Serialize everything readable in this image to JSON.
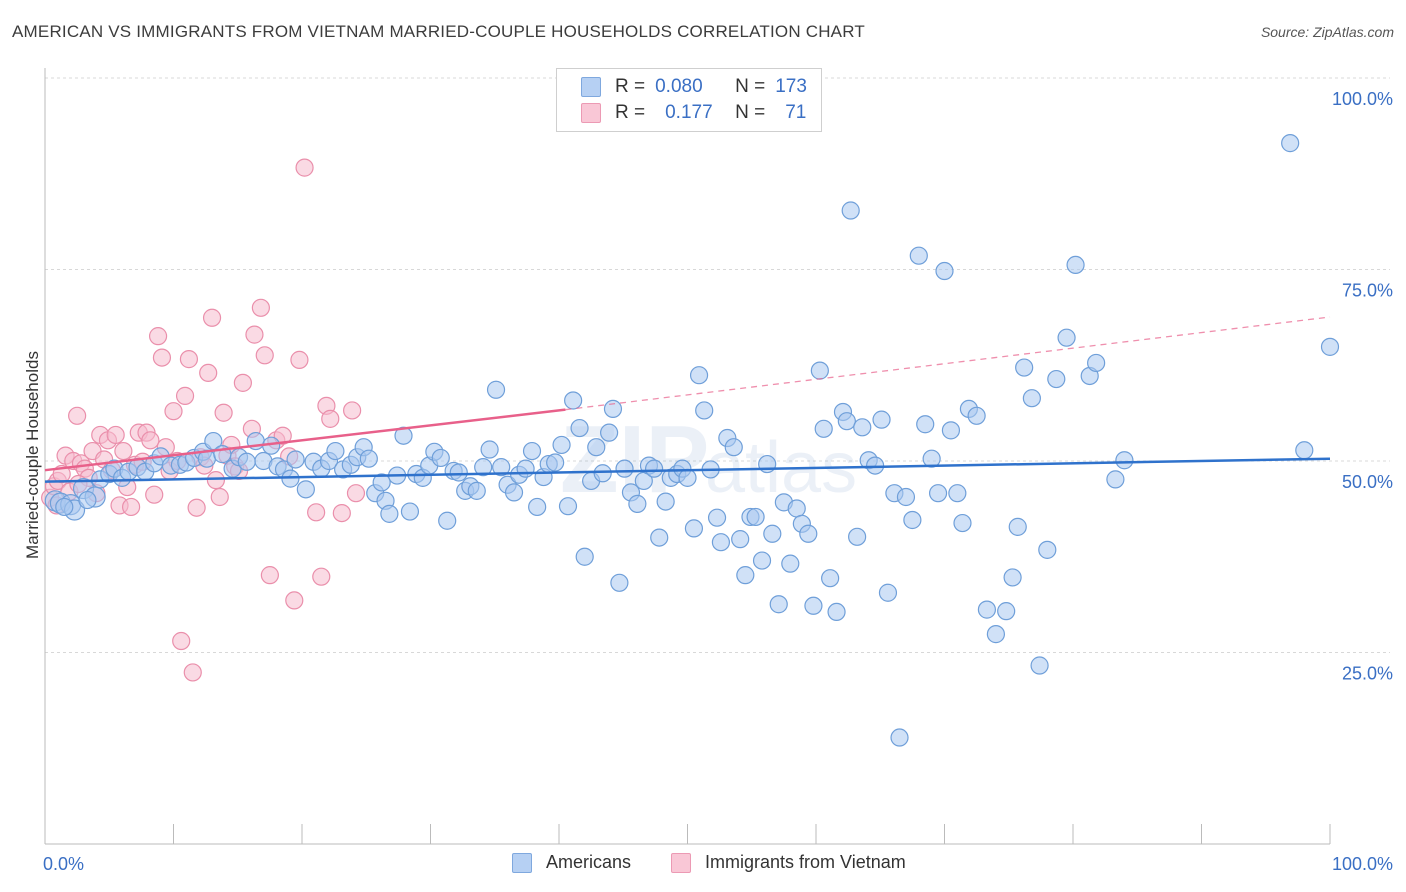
{
  "title": "AMERICAN VS IMMIGRANTS FROM VIETNAM MARRIED-COUPLE HOUSEHOLDS CORRELATION CHART",
  "source": "Source: ZipAtlas.com",
  "legend": {
    "row1": {
      "r_label": "R =",
      "r_value": "0.080",
      "n_label": "N =",
      "n_value": "173"
    },
    "row2": {
      "r_label": "R =",
      "r_value": "0.177",
      "n_label": "N =",
      "n_value": "71"
    }
  },
  "bottom_legend": {
    "americans": "Americans",
    "vietnam": "Immigrants from Vietnam"
  },
  "colors": {
    "blue_fill": "#a9c8f0",
    "blue_stroke": "#6f9fd9",
    "blue_line": "#2f72cc",
    "pink_fill": "#f6bccd",
    "pink_stroke": "#ea8fab",
    "pink_line": "#e8608a",
    "axis_text": "#3a6fc4",
    "grid": "#d8d8d8"
  },
  "chart_data": {
    "type": "scatter",
    "title": "AMERICAN VS IMMIGRANTS FROM VIETNAM MARRIED-COUPLE HOUSEHOLDS CORRELATION CHART",
    "xlabel": "",
    "ylabel": "Married-couple Households",
    "xlim": [
      0,
      100
    ],
    "ylim": [
      0,
      100
    ],
    "x_tick_labels": [
      "0.0%",
      "100.0%"
    ],
    "y_tick_labels": [
      "25.0%",
      "50.0%",
      "75.0%",
      "100.0%"
    ],
    "y_ticks": [
      25,
      50,
      75,
      100
    ],
    "grid": true,
    "legend_position": "top-center",
    "series": [
      {
        "name": "Americans",
        "R": 0.08,
        "N": 173,
        "trend": {
          "x": [
            0,
            100
          ],
          "y": [
            47.3,
            50.3
          ],
          "style": "solid"
        },
        "points": [
          [
            0.8,
            44.8
          ],
          [
            1.2,
            44.5
          ],
          [
            2.0,
            44.3
          ],
          [
            2.3,
            43.6
          ],
          [
            3.0,
            46.4
          ],
          [
            3.9,
            45.3
          ],
          [
            4.3,
            47.6
          ],
          [
            5.0,
            48.3
          ],
          [
            5.4,
            49.0
          ],
          [
            6.0,
            47.8
          ],
          [
            6.5,
            48.6
          ],
          [
            7.2,
            49.2
          ],
          [
            7.8,
            48.6
          ],
          [
            8.5,
            49.7
          ],
          [
            9.0,
            50.6
          ],
          [
            9.8,
            49.4
          ],
          [
            10.5,
            49.5
          ],
          [
            11.0,
            49.8
          ],
          [
            11.6,
            50.4
          ],
          [
            12.3,
            51.2
          ],
          [
            12.6,
            50.3
          ],
          [
            13.1,
            52.6
          ],
          [
            13.8,
            50.9
          ],
          [
            14.6,
            49.0
          ],
          [
            15.1,
            50.5
          ],
          [
            15.7,
            49.9
          ],
          [
            16.4,
            52.6
          ],
          [
            17.0,
            50.0
          ],
          [
            17.6,
            52.0
          ],
          [
            18.1,
            49.3
          ],
          [
            18.6,
            48.9
          ],
          [
            19.1,
            47.7
          ],
          [
            19.5,
            50.2
          ],
          [
            20.3,
            46.3
          ],
          [
            20.9,
            49.9
          ],
          [
            21.5,
            49.0
          ],
          [
            22.1,
            50.0
          ],
          [
            22.6,
            51.3
          ],
          [
            23.2,
            48.9
          ],
          [
            23.8,
            49.5
          ],
          [
            24.3,
            50.5
          ],
          [
            24.8,
            51.8
          ],
          [
            25.2,
            50.3
          ],
          [
            25.7,
            45.8
          ],
          [
            26.2,
            47.2
          ],
          [
            26.5,
            44.8
          ],
          [
            26.8,
            43.1
          ],
          [
            27.4,
            48.1
          ],
          [
            27.9,
            53.3
          ],
          [
            28.4,
            43.4
          ],
          [
            28.9,
            48.3
          ],
          [
            29.4,
            47.8
          ],
          [
            29.9,
            49.4
          ],
          [
            30.3,
            51.2
          ],
          [
            30.8,
            50.4
          ],
          [
            31.3,
            42.2
          ],
          [
            31.8,
            48.7
          ],
          [
            32.2,
            48.5
          ],
          [
            32.7,
            46.1
          ],
          [
            33.1,
            46.7
          ],
          [
            33.6,
            46.1
          ],
          [
            34.1,
            49.2
          ],
          [
            34.6,
            51.5
          ],
          [
            35.1,
            59.3
          ],
          [
            35.5,
            49.2
          ],
          [
            36.0,
            46.9
          ],
          [
            36.5,
            45.9
          ],
          [
            36.9,
            48.2
          ],
          [
            37.4,
            49.0
          ],
          [
            37.9,
            51.3
          ],
          [
            38.3,
            44.0
          ],
          [
            38.8,
            47.9
          ],
          [
            39.2,
            49.6
          ],
          [
            39.7,
            49.8
          ],
          [
            40.2,
            52.1
          ],
          [
            40.7,
            44.1
          ],
          [
            41.1,
            57.9
          ],
          [
            41.6,
            54.3
          ],
          [
            42.0,
            37.5
          ],
          [
            42.5,
            47.4
          ],
          [
            42.9,
            51.8
          ],
          [
            43.4,
            48.4
          ],
          [
            43.9,
            53.7
          ],
          [
            44.2,
            56.8
          ],
          [
            44.7,
            34.1
          ],
          [
            45.1,
            49.0
          ],
          [
            45.6,
            45.9
          ],
          [
            46.1,
            44.4
          ],
          [
            46.6,
            47.4
          ],
          [
            47.0,
            49.4
          ],
          [
            47.4,
            49.0
          ],
          [
            47.8,
            40.0
          ],
          [
            48.3,
            44.7
          ],
          [
            48.7,
            47.8
          ],
          [
            49.2,
            48.3
          ],
          [
            49.6,
            49.0
          ],
          [
            50.0,
            47.8
          ],
          [
            50.5,
            41.2
          ],
          [
            50.9,
            61.2
          ],
          [
            51.3,
            56.6
          ],
          [
            51.8,
            48.9
          ],
          [
            52.3,
            42.6
          ],
          [
            52.6,
            39.4
          ],
          [
            53.1,
            53.0
          ],
          [
            53.6,
            51.8
          ],
          [
            54.1,
            39.8
          ],
          [
            54.5,
            35.1
          ],
          [
            54.9,
            42.7
          ],
          [
            55.3,
            42.7
          ],
          [
            55.8,
            37.0
          ],
          [
            56.2,
            49.6
          ],
          [
            56.6,
            40.5
          ],
          [
            57.1,
            31.3
          ],
          [
            57.5,
            44.6
          ],
          [
            58.0,
            36.6
          ],
          [
            58.5,
            43.8
          ],
          [
            58.9,
            41.8
          ],
          [
            59.4,
            40.5
          ],
          [
            59.8,
            31.1
          ],
          [
            60.3,
            61.8
          ],
          [
            60.6,
            54.2
          ],
          [
            61.1,
            34.7
          ],
          [
            61.6,
            30.3
          ],
          [
            62.1,
            56.4
          ],
          [
            62.4,
            55.2
          ],
          [
            62.7,
            82.7
          ],
          [
            63.2,
            40.1
          ],
          [
            63.6,
            54.4
          ],
          [
            64.1,
            50.1
          ],
          [
            64.6,
            49.4
          ],
          [
            65.1,
            55.4
          ],
          [
            65.6,
            32.8
          ],
          [
            66.1,
            45.8
          ],
          [
            66.5,
            13.9
          ],
          [
            67.0,
            45.3
          ],
          [
            67.5,
            42.3
          ],
          [
            68.0,
            76.8
          ],
          [
            68.5,
            54.8
          ],
          [
            69.0,
            50.3
          ],
          [
            69.5,
            45.8
          ],
          [
            70.0,
            74.8
          ],
          [
            70.5,
            54.0
          ],
          [
            71.0,
            45.8
          ],
          [
            71.4,
            41.9
          ],
          [
            71.9,
            56.8
          ],
          [
            72.5,
            55.9
          ],
          [
            73.3,
            30.6
          ],
          [
            74.0,
            27.4
          ],
          [
            74.8,
            30.4
          ],
          [
            75.3,
            34.8
          ],
          [
            75.7,
            41.4
          ],
          [
            76.2,
            62.2
          ],
          [
            76.8,
            58.2
          ],
          [
            77.4,
            23.3
          ],
          [
            78.0,
            38.4
          ],
          [
            78.7,
            60.7
          ],
          [
            79.5,
            66.1
          ],
          [
            80.2,
            75.6
          ],
          [
            81.3,
            61.1
          ],
          [
            81.8,
            62.8
          ],
          [
            83.3,
            47.6
          ],
          [
            84.0,
            50.1
          ],
          [
            96.9,
            91.5
          ],
          [
            98.0,
            51.4
          ],
          [
            100.0,
            64.9
          ],
          [
            1.5,
            44.0
          ],
          [
            3.3,
            44.9
          ]
        ]
      },
      {
        "name": "Immigrants from Vietnam",
        "R": 0.177,
        "N": 71,
        "trend": {
          "x": [
            0,
            40.5
          ],
          "y": [
            48.8,
            56.7
          ],
          "extended": {
            "x": [
              40.5,
              100
            ],
            "y": [
              56.7,
              68.8
            ]
          },
          "style": "solid+dashed"
        },
        "points": [
          [
            0.4,
            45.2
          ],
          [
            0.7,
            46.7
          ],
          [
            1.0,
            47.4
          ],
          [
            1.3,
            48.3
          ],
          [
            1.6,
            50.7
          ],
          [
            1.9,
            46.0
          ],
          [
            2.2,
            50.0
          ],
          [
            2.5,
            55.9
          ],
          [
            2.8,
            49.7
          ],
          [
            3.1,
            49.0
          ],
          [
            3.4,
            47.8
          ],
          [
            3.7,
            51.3
          ],
          [
            4.0,
            45.8
          ],
          [
            4.3,
            53.4
          ],
          [
            4.6,
            50.2
          ],
          [
            4.9,
            52.7
          ],
          [
            5.2,
            48.8
          ],
          [
            5.5,
            53.4
          ],
          [
            5.8,
            44.2
          ],
          [
            6.1,
            51.3
          ],
          [
            6.4,
            46.6
          ],
          [
            6.7,
            44.0
          ],
          [
            7.0,
            49.5
          ],
          [
            7.3,
            53.7
          ],
          [
            7.6,
            49.9
          ],
          [
            7.9,
            53.7
          ],
          [
            8.2,
            52.7
          ],
          [
            8.5,
            45.6
          ],
          [
            8.8,
            66.3
          ],
          [
            9.1,
            63.5
          ],
          [
            9.4,
            51.8
          ],
          [
            9.7,
            48.7
          ],
          [
            10.0,
            56.5
          ],
          [
            10.3,
            50.0
          ],
          [
            10.6,
            26.5
          ],
          [
            10.9,
            58.5
          ],
          [
            11.2,
            63.3
          ],
          [
            11.5,
            22.4
          ],
          [
            11.8,
            43.9
          ],
          [
            12.1,
            50.5
          ],
          [
            12.4,
            49.4
          ],
          [
            12.7,
            61.5
          ],
          [
            13.0,
            68.7
          ],
          [
            13.3,
            47.5
          ],
          [
            13.6,
            45.3
          ],
          [
            13.9,
            56.3
          ],
          [
            14.2,
            50.7
          ],
          [
            14.5,
            52.1
          ],
          [
            14.8,
            49.3
          ],
          [
            15.1,
            48.7
          ],
          [
            15.4,
            60.2
          ],
          [
            16.1,
            54.2
          ],
          [
            16.3,
            66.5
          ],
          [
            16.8,
            70.0
          ],
          [
            17.1,
            63.8
          ],
          [
            17.5,
            35.1
          ],
          [
            18.0,
            52.7
          ],
          [
            18.5,
            53.3
          ],
          [
            19.0,
            50.6
          ],
          [
            19.4,
            31.8
          ],
          [
            19.8,
            63.2
          ],
          [
            20.2,
            88.3
          ],
          [
            21.1,
            43.3
          ],
          [
            21.5,
            34.9
          ],
          [
            21.9,
            57.2
          ],
          [
            22.2,
            55.5
          ],
          [
            23.1,
            43.2
          ],
          [
            23.9,
            56.6
          ],
          [
            24.2,
            45.8
          ],
          [
            0.9,
            44.2
          ],
          [
            2.6,
            47.0
          ]
        ]
      }
    ]
  }
}
